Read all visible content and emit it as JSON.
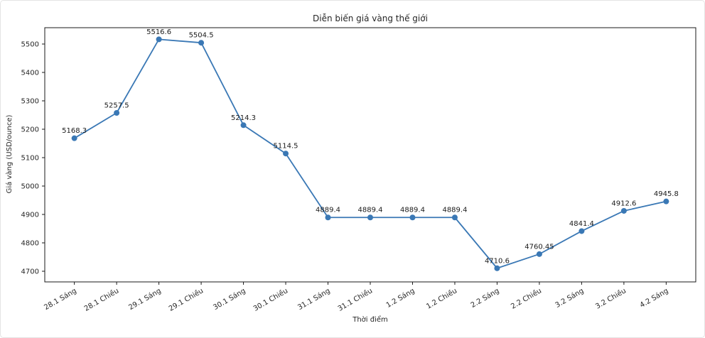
{
  "chart_data": {
    "type": "line",
    "title": "Diễn biến giá vàng thế giới",
    "xlabel": "Thời điểm",
    "ylabel": "Giá vàng (USD/ounce)",
    "categories": [
      "28.1 Sáng",
      "28.1 Chiều",
      "29.1 Sáng",
      "29.1 Chiều",
      "30.1 Sáng",
      "30.1 Chiều",
      "31.1 Sáng",
      "31.1 Chiều",
      "1.2 Sáng",
      "1.2 Chiều",
      "2.2 Sáng",
      "2.2 Chiều",
      "3.2 Sáng",
      "3.2 Chiều",
      "4.2 Sáng"
    ],
    "values": [
      5168.3,
      5257.5,
      5516.6,
      5504.5,
      5214.3,
      5114.5,
      4889.4,
      4889.4,
      4889.4,
      4889.4,
      4710.6,
      4760.45,
      4841.4,
      4912.6,
      4945.8
    ],
    "point_labels": [
      "5168.3",
      "5257.5",
      "5516.6",
      "5504.5",
      "5214.3",
      "5114.5",
      "4889.4",
      "4889.4",
      "4889.4",
      "4889.4",
      "4710.6",
      "4760.45",
      "4841.4",
      "4912.6",
      "4945.8"
    ],
    "yticks": [
      4700,
      4800,
      4900,
      5000,
      5100,
      5200,
      5300,
      5400,
      5500
    ],
    "ylim": [
      4662.5,
      5557.5
    ],
    "x_category_pad": 0.7,
    "x_tick_rotation_deg": 30,
    "grid": false,
    "legend": "none",
    "line_color": "#3a78b5",
    "marker_color": "#3a78b5",
    "spine_color": "#1a1a1a",
    "text_color": "#262626"
  }
}
